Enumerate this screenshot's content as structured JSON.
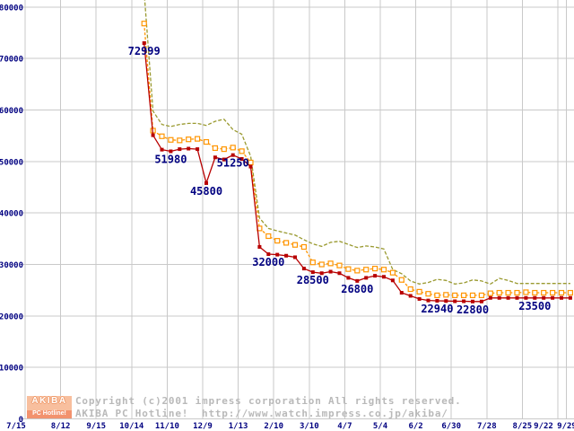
{
  "footer": {
    "logo": {
      "line1": "AKIBA",
      "line2": "PC Hotline!"
    },
    "copyright_line1": "Copyright (c)2001 impress corporation All rights reserved.",
    "copyright_line2": "AKIBA PC Hotline!  http://www.watch.impress.co.jp/akiba/"
  },
  "chart_data": {
    "type": "line",
    "title": "",
    "xlabel": "",
    "ylabel": "",
    "grid": true,
    "ylim": [
      0,
      80000
    ],
    "y_ticks": [
      0,
      10000,
      20000,
      30000,
      40000,
      50000,
      60000,
      70000,
      80000
    ],
    "x_tick_labels": [
      "7/15",
      "8/12",
      "9/15",
      "10/14",
      "11/10",
      "12/9",
      "1/13",
      "2/10",
      "3/10",
      "4/7",
      "5/4",
      "6/2",
      "6/30",
      "7/28",
      "8/25",
      "9/22"
    ],
    "x_extra_label": "9/29",
    "axis_text_color": "#000080",
    "grid_color": "#c9c9c9",
    "series": [
      {
        "name": "highest-price",
        "color": "#9a9a30",
        "style": "dashed",
        "marker": "none",
        "values": [
          83000,
          59800,
          57200,
          56800,
          57200,
          57400,
          57400,
          57000,
          57800,
          58200,
          56200,
          55300,
          51000,
          39000,
          37000,
          36500,
          36100,
          35700,
          34800,
          34000,
          33500,
          34300,
          34500,
          33900,
          33300,
          33600,
          33400,
          33000,
          29000,
          28200,
          26800,
          26200,
          26500,
          27100,
          26900,
          26200,
          26400,
          27000,
          26800,
          26200,
          27300,
          26900,
          26300,
          26300,
          26300,
          26300,
          26300,
          26300,
          26300
        ]
      },
      {
        "name": "average-price",
        "color": "#ff9500",
        "style": "dashed",
        "marker": "open-square",
        "values": [
          76800,
          56000,
          54900,
          54200,
          54100,
          54300,
          54400,
          53800,
          52600,
          52400,
          52700,
          52000,
          49800,
          37000,
          35500,
          34600,
          34200,
          33800,
          33400,
          30400,
          30000,
          30200,
          29800,
          29100,
          28800,
          29000,
          29200,
          29000,
          28400,
          27000,
          25200,
          24700,
          24300,
          24000,
          24100,
          24000,
          24000,
          24000,
          24000,
          24400,
          24500,
          24500,
          24500,
          24600,
          24500,
          24500,
          24500,
          24500,
          24500
        ]
      },
      {
        "name": "lowest-price",
        "color": "#b80000",
        "style": "solid",
        "marker": "filled-square",
        "values": [
          72999,
          55100,
          52300,
          51980,
          52400,
          52500,
          52400,
          45800,
          50800,
          50400,
          51250,
          50500,
          49000,
          33400,
          32000,
          31900,
          31700,
          31400,
          29200,
          28500,
          28300,
          28600,
          28300,
          27400,
          26800,
          27400,
          27800,
          27600,
          26900,
          24500,
          23900,
          23300,
          23000,
          22940,
          22900,
          22850,
          22850,
          22800,
          22800,
          23500,
          23500,
          23500,
          23500,
          23500,
          23500,
          23500,
          23500,
          23500,
          23500
        ]
      }
    ],
    "point_labels": [
      {
        "text": "72999",
        "series": "lowest-price",
        "index": 0
      },
      {
        "text": "51980",
        "series": "lowest-price",
        "index": 3
      },
      {
        "text": "45800",
        "series": "lowest-price",
        "index": 7
      },
      {
        "text": "51250",
        "series": "lowest-price",
        "index": 10
      },
      {
        "text": "32000",
        "series": "lowest-price",
        "index": 14
      },
      {
        "text": "28500",
        "series": "lowest-price",
        "index": 19
      },
      {
        "text": "26800",
        "series": "lowest-price",
        "index": 24
      },
      {
        "text": "22940",
        "series": "lowest-price",
        "index": 33
      },
      {
        "text": "22800",
        "series": "lowest-price",
        "index": 37
      },
      {
        "text": "23500",
        "series": "lowest-price",
        "index": 44
      }
    ],
    "point_label_color": "#000080"
  }
}
